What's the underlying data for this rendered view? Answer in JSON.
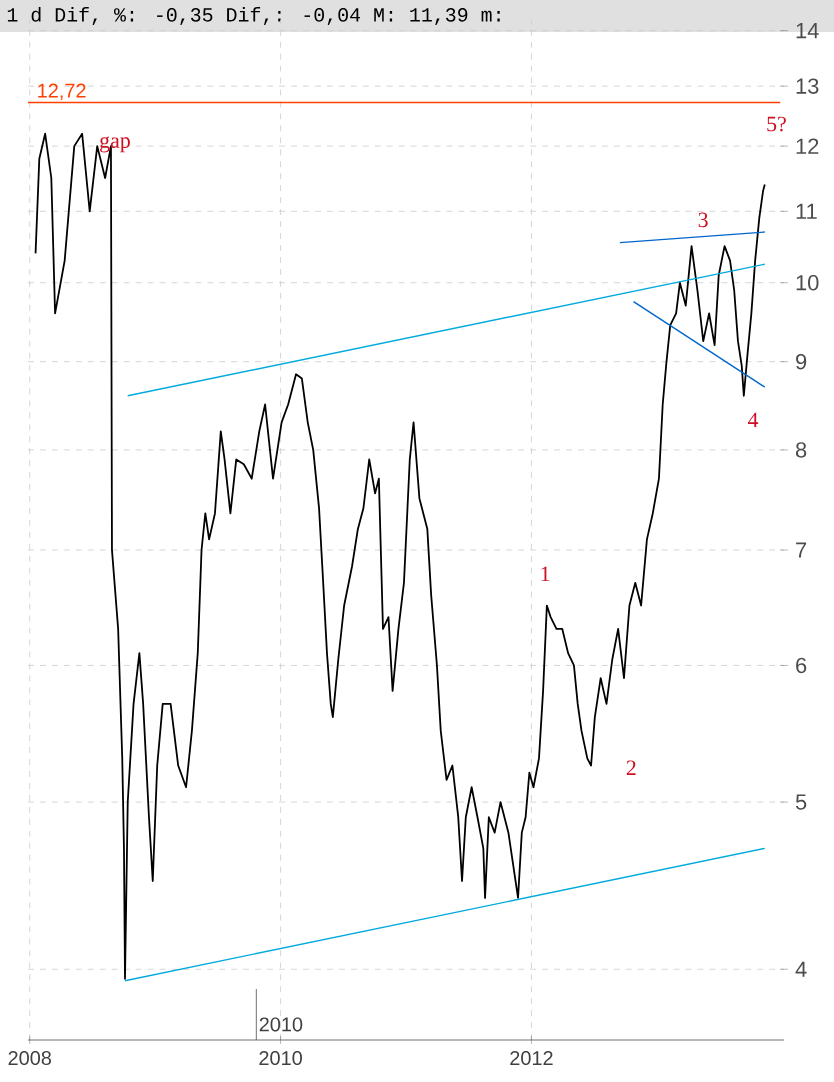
{
  "chart_data": {
    "type": "line",
    "title": "1 d Dif, %: -0,35 Dif,: -0,04 M: 11,39 m:",
    "log": true,
    "grid": true,
    "xlim": [
      "2007-12-27",
      "2014-01-06"
    ],
    "xticks": [
      "2008",
      "2010",
      "2012"
    ],
    "ylim": [
      3.64,
      14.2
    ],
    "yticks": [
      4,
      5,
      6,
      7,
      8,
      9,
      10,
      11,
      12,
      13,
      14
    ],
    "ref_lines": [
      {
        "axis": "y",
        "value": 12.72,
        "label": "12,72",
        "color": "#ff4000"
      }
    ],
    "annotations": [
      "gap",
      "1",
      "2",
      "3",
      "4",
      "5?",
      "2010"
    ],
    "series": [
      {
        "color": "#000000",
        "x": [
          "2008-01-18",
          "2008-01-29",
          "2008-02-15",
          "2008-03-04",
          "2008-03-15",
          "2008-04-12",
          "2008-05-10",
          "2008-06-02",
          "2008-06-24",
          "2008-07-16",
          "2008-08-08",
          "2008-08-25",
          "2008-08-28",
          "2008-09-15",
          "2008-09-27",
          "2008-10-02",
          "2008-10-05",
          "2008-10-13",
          "2008-10-30",
          "2008-11-16",
          "2008-11-27",
          "2008-12-14",
          "2008-12-25",
          "2009-01-07",
          "2009-01-23",
          "2009-02-15",
          "2009-03-09",
          "2009-04-01",
          "2009-04-18",
          "2009-05-05",
          "2009-05-16",
          "2009-05-27",
          "2009-06-07",
          "2009-06-24",
          "2009-07-11",
          "2009-07-22",
          "2009-08-08",
          "2009-08-25",
          "2009-09-16",
          "2009-10-09",
          "2009-10-31",
          "2009-11-17",
          "2009-12-10",
          "2010-01-04",
          "2010-01-23",
          "2010-02-15",
          "2010-03-04",
          "2010-03-21",
          "2010-04-06",
          "2010-04-23",
          "2010-05-05",
          "2010-05-16",
          "2010-05-27",
          "2010-06-02",
          "2010-06-18",
          "2010-07-05",
          "2010-07-28",
          "2010-08-14",
          "2010-08-30",
          "2010-09-16",
          "2010-10-03",
          "2010-10-14",
          "2010-10-26",
          "2010-11-11",
          "2010-11-23",
          "2010-12-10",
          "2010-12-26",
          "2011-01-12",
          "2011-01-23",
          "2011-02-09",
          "2011-03-04",
          "2011-03-15",
          "2011-04-01",
          "2011-04-12",
          "2011-04-29",
          "2011-05-16",
          "2011-06-02",
          "2011-06-13",
          "2011-06-24",
          "2011-07-11",
          "2011-07-28",
          "2011-08-14",
          "2011-08-19",
          "2011-08-30",
          "2011-09-16",
          "2011-10-03",
          "2011-10-26",
          "2011-11-23",
          "2011-12-04",
          "2011-12-15",
          "2011-12-26",
          "2012-01-07",
          "2012-01-23",
          "2012-02-04",
          "2012-02-15",
          "2012-02-26",
          "2012-03-14",
          "2012-03-31",
          "2012-04-17",
          "2012-05-04",
          "2012-05-15",
          "2012-05-26",
          "2012-06-12",
          "2012-06-23",
          "2012-07-04",
          "2012-07-21",
          "2012-08-07",
          "2012-08-24",
          "2012-09-10",
          "2012-09-27",
          "2012-10-13",
          "2012-10-30",
          "2012-11-16",
          "2012-12-03",
          "2012-12-20",
          "2013-01-07",
          "2013-01-18",
          "2013-01-29",
          "2013-02-09",
          "2013-02-26",
          "2013-03-09",
          "2013-03-26",
          "2013-04-12",
          "2013-04-29",
          "2013-05-16",
          "2013-06-02",
          "2013-06-18",
          "2013-06-30",
          "2013-07-17",
          "2013-08-02",
          "2013-08-14",
          "2013-08-25",
          "2013-09-05",
          "2013-09-11",
          "2013-09-22",
          "2013-10-03",
          "2013-10-14",
          "2013-10-26",
          "2013-11-06",
          "2013-11-11"
        ],
        "values": [
          10.4,
          11.8,
          12.2,
          11.5,
          9.6,
          10.3,
          12.0,
          12.2,
          11.0,
          12.0,
          11.5,
          12.0,
          7.0,
          6.3,
          5.3,
          4.7,
          3.95,
          5.0,
          5.7,
          6.1,
          5.7,
          4.9,
          4.5,
          5.25,
          5.7,
          5.7,
          5.25,
          5.1,
          5.5,
          6.1,
          7.0,
          7.35,
          7.1,
          7.35,
          8.2,
          7.9,
          7.35,
          7.9,
          7.85,
          7.7,
          8.2,
          8.5,
          7.7,
          8.3,
          8.5,
          8.85,
          8.8,
          8.3,
          8.0,
          7.4,
          6.7,
          6.1,
          5.7,
          5.6,
          6.05,
          6.5,
          6.85,
          7.2,
          7.4,
          7.9,
          7.55,
          7.7,
          6.3,
          6.4,
          5.8,
          6.3,
          6.7,
          7.9,
          8.3,
          7.5,
          7.2,
          6.6,
          6.0,
          5.5,
          5.15,
          5.25,
          4.9,
          4.5,
          4.9,
          5.1,
          4.9,
          4.7,
          4.4,
          4.9,
          4.8,
          5.0,
          4.8,
          4.4,
          4.8,
          4.9,
          5.2,
          5.1,
          5.3,
          5.8,
          6.5,
          6.4,
          6.3,
          6.3,
          6.1,
          6.0,
          5.7,
          5.5,
          5.3,
          5.25,
          5.6,
          5.9,
          5.7,
          6.05,
          6.3,
          5.9,
          6.5,
          6.7,
          6.5,
          7.1,
          7.35,
          7.7,
          8.5,
          9.0,
          9.45,
          9.6,
          10.0,
          9.7,
          10.5,
          9.9,
          9.25,
          9.6,
          9.2,
          10.1,
          10.5,
          10.3,
          9.9,
          9.25,
          8.95,
          8.6,
          9.1,
          9.6,
          10.3,
          10.9,
          11.3,
          11.4
        ]
      },
      {
        "type": "line",
        "color": "#00aadd",
        "x": [
          "2008-10-13",
          "2013-11-11"
        ],
        "values": [
          8.6,
          10.25
        ]
      },
      {
        "type": "line",
        "color": "#00aadd",
        "x": [
          "2008-10-05",
          "2013-11-11"
        ],
        "values": [
          3.94,
          4.7
        ]
      },
      {
        "type": "line",
        "color": "#0066cc",
        "x": [
          "2012-09-15",
          "2013-11-11"
        ],
        "values": [
          10.55,
          10.7
        ]
      },
      {
        "type": "line",
        "color": "#0066cc",
        "x": [
          "2012-10-25",
          "2013-11-11"
        ],
        "values": [
          9.75,
          8.7
        ]
      }
    ]
  }
}
